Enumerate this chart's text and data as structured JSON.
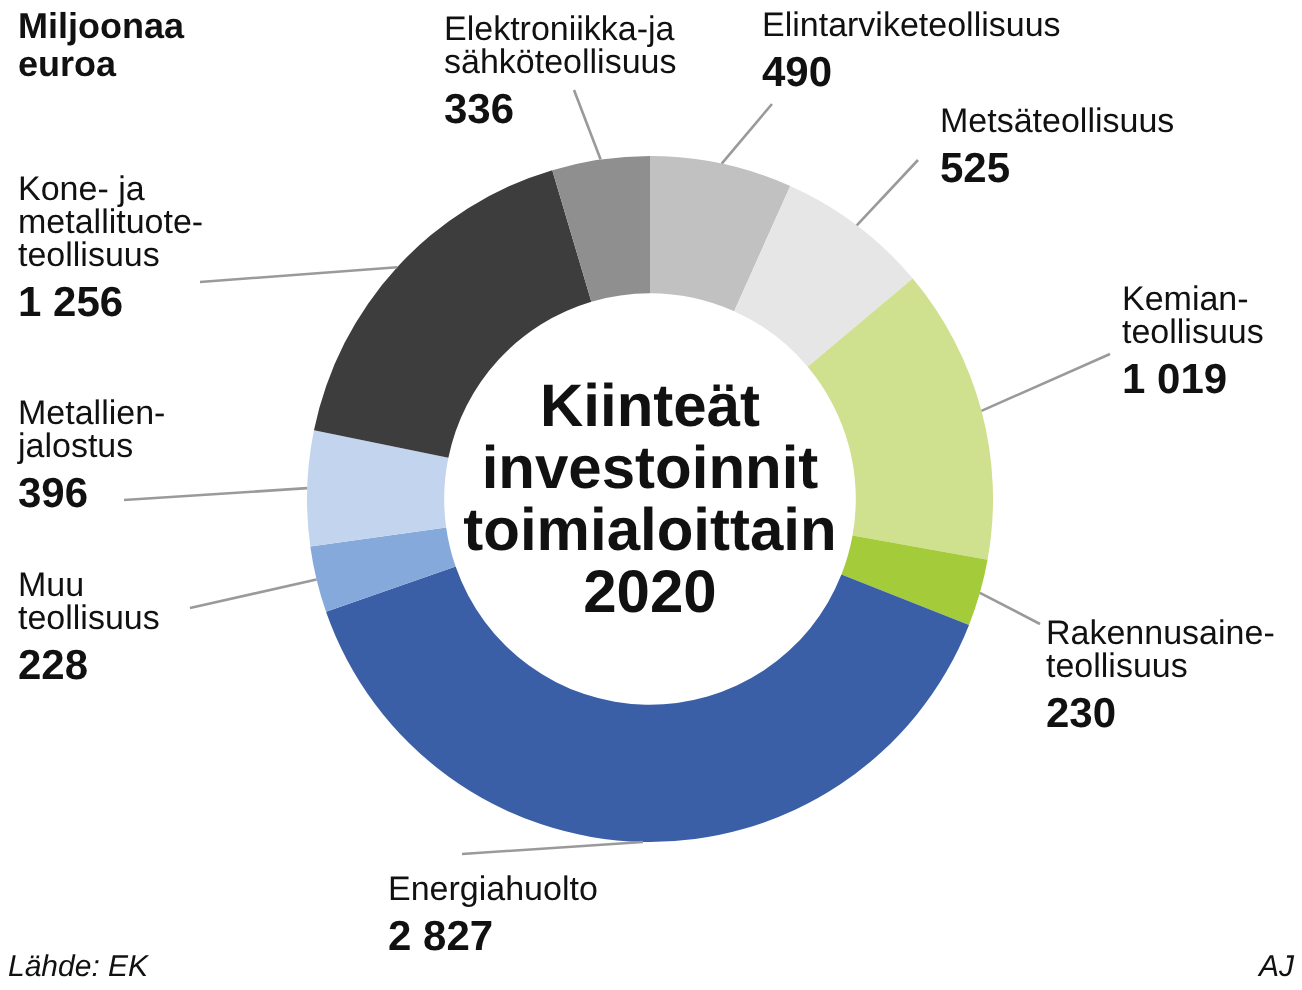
{
  "chart_data": {
    "type": "donut",
    "title": "Kiinteät\ninvestoinnit\ntoimialoittain\n2020",
    "subtitle": "Miljoonaa\neuroa",
    "categories": [
      "Elintarviketeollisuus",
      "Metsäteollisuus",
      "Kemian-\nteollisuus",
      "Rakennusaine-\nteollisuus",
      "Energiahuolto",
      "Muu\nteollisuus",
      "Metallien-\njalostus",
      "Kone- ja\nmetallituote-\nteollisuus",
      "Elektroniikka-ja\nsähköteollisuus"
    ],
    "values": [
      490,
      525,
      1019,
      230,
      2827,
      228,
      396,
      1256,
      336
    ],
    "colors": [
      "#c1c1c1",
      "#e6e6e6",
      "#cfe08e",
      "#a3cb3a",
      "#3b5fa7",
      "#86a9dc",
      "#c3d4ee",
      "#3d3d3d",
      "#8f8f8f"
    ],
    "value_labels": [
      "490",
      "525",
      "1 019",
      "230",
      "2 827",
      "228",
      "396",
      "1 256",
      "336"
    ],
    "annotations": [
      "Lähde: EK",
      "AJ"
    ]
  }
}
